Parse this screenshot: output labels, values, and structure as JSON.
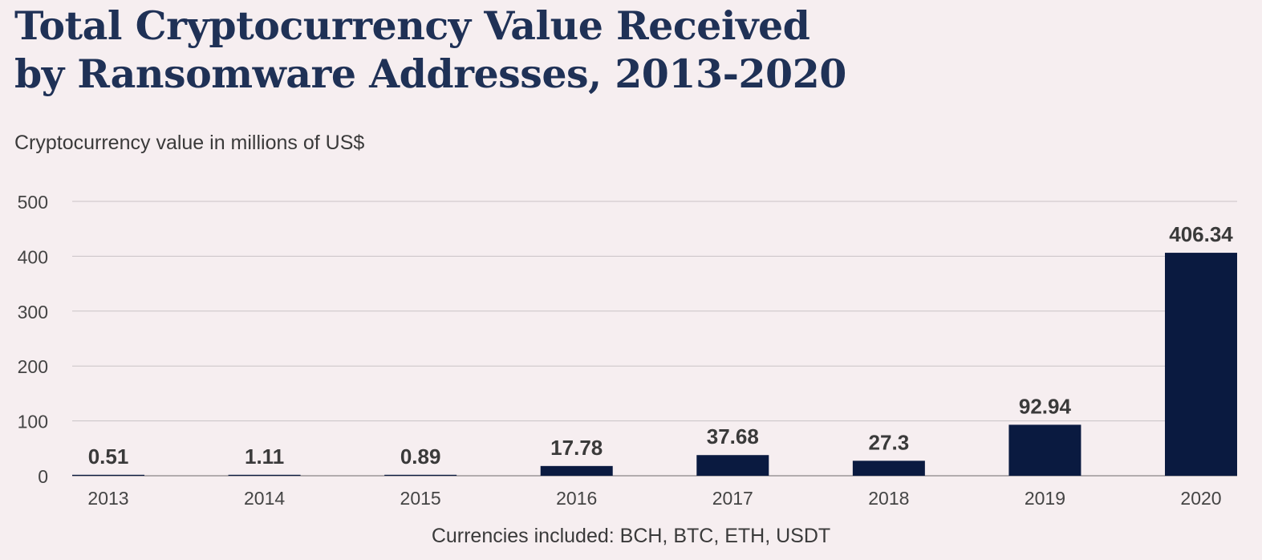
{
  "title": {
    "line1": "Total Cryptocurrency Value Received",
    "line2": "by Ransomware Addresses, 2013-2020"
  },
  "subtitle": "Cryptocurrency value in millions of US$",
  "footnote": "Currencies included: BCH, BTC, ETH, USDT",
  "colors": {
    "bar": "#0a1a40",
    "grid": "#c9c3c6",
    "axis_text": "#444444",
    "label_text": "#3a3a3a"
  },
  "chart_data": {
    "type": "bar",
    "categories": [
      "2013",
      "2014",
      "2015",
      "2016",
      "2017",
      "2018",
      "2019",
      "2020"
    ],
    "values": [
      0.51,
      1.11,
      0.89,
      17.78,
      37.68,
      27.3,
      92.94,
      406.34
    ],
    "data_labels": [
      "0.51",
      "1.11",
      "0.89",
      "17.78",
      "37.68",
      "27.3",
      "92.94",
      "406.34"
    ],
    "ylim": [
      0,
      500
    ],
    "yticks": [
      0,
      100,
      200,
      300,
      400,
      500
    ],
    "ytick_labels": [
      "0",
      "100",
      "200",
      "300",
      "400",
      "500"
    ],
    "grid": true,
    "legend": "none"
  }
}
